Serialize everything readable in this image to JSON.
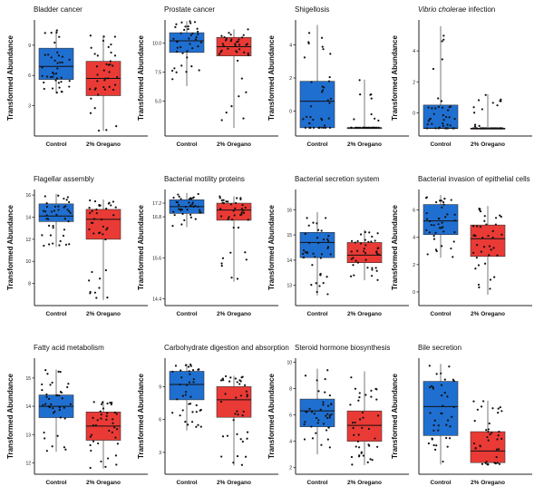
{
  "colors": {
    "control": "#1f6fd1",
    "oregano": "#ea3a35",
    "whisker": "#555555",
    "point": "#111111"
  },
  "chart_data": [
    {
      "type": "box",
      "title": "Bladder cancer",
      "italic": false,
      "ylabel": "Transformed Abundance",
      "categories": [
        "Control",
        "2% Oregano"
      ],
      "ylim": [
        0,
        11.5
      ],
      "yticks": [
        3,
        6,
        9
      ],
      "series": [
        {
          "name": "Control",
          "min": 4.2,
          "q1": 5.6,
          "median": 6.9,
          "q3": 8.7,
          "max": 10.5
        },
        {
          "name": "2% Oregano",
          "min": 0.5,
          "q1": 4.0,
          "median": 5.7,
          "q3": 7.4,
          "max": 10.0
        }
      ]
    },
    {
      "type": "box",
      "title": "Prostate cancer",
      "italic": false,
      "ylabel": "Transformed Abundance",
      "categories": [
        "Control",
        "2% Oregano"
      ],
      "ylim": [
        2.0,
        12.0
      ],
      "yticks": [
        5.0,
        7.5,
        10.0
      ],
      "series": [
        {
          "name": "Control",
          "min": 6.3,
          "q1": 9.2,
          "median": 10.2,
          "q3": 10.9,
          "max": 11.9
        },
        {
          "name": "2% Oregano",
          "min": 2.7,
          "q1": 8.9,
          "median": 9.7,
          "q3": 10.5,
          "max": 11.2
        }
      ]
    },
    {
      "type": "box",
      "title": "Shigellosis",
      "italic": false,
      "ylabel": "Transformed Abundance",
      "categories": [
        "Control",
        "2% Oregano"
      ],
      "ylim": [
        -1.5,
        5.5
      ],
      "yticks": [
        0,
        2,
        4
      ],
      "series": [
        {
          "name": "Control",
          "min": -1.0,
          "q1": -1.0,
          "median": 0.6,
          "q3": 1.8,
          "max": 5.2
        },
        {
          "name": "2% Oregano",
          "min": -1.0,
          "q1": -1.0,
          "median": -1.0,
          "q3": -1.0,
          "max": 1.9
        }
      ]
    },
    {
      "type": "box",
      "title": "Vibrio cholerae infection",
      "italic": true,
      "ylabel": "Transformed Abundance",
      "categories": [
        "Control",
        "2% Oregano"
      ],
      "ylim": [
        -1.5,
        6.0
      ],
      "yticks": [
        0,
        2,
        4
      ],
      "series": [
        {
          "name": "Control",
          "min": -1.0,
          "q1": -1.0,
          "median": -1.0,
          "q3": 0.5,
          "max": 5.6
        },
        {
          "name": "2% Oregano",
          "min": -1.0,
          "q1": -1.0,
          "median": -1.0,
          "q3": -1.0,
          "max": 1.2
        }
      ]
    },
    {
      "type": "box",
      "title": "Flagellar assembly",
      "italic": false,
      "ylabel": "Transformed Abundance",
      "categories": [
        "Control",
        "2% Oregano"
      ],
      "ylim": [
        6.0,
        16.5
      ],
      "yticks": [
        8,
        10,
        12,
        14,
        16
      ],
      "series": [
        {
          "name": "Control",
          "min": 11.3,
          "q1": 13.6,
          "median": 14.1,
          "q3": 15.2,
          "max": 16.1
        },
        {
          "name": "2% Oregano",
          "min": 6.5,
          "q1": 12.0,
          "median": 13.8,
          "q3": 14.7,
          "max": 15.6
        }
      ]
    },
    {
      "type": "box",
      "title": "Bacterial motility proteins",
      "italic": false,
      "ylabel": "Transformed Abundance",
      "categories": [
        "Control",
        "2% Oregano"
      ],
      "ylim": [
        14.2,
        17.6
      ],
      "yticks": [
        14.4,
        15.6,
        16.8,
        17.2
      ],
      "series": [
        {
          "name": "Control",
          "min": 16.5,
          "q1": 16.9,
          "median": 17.1,
          "q3": 17.3,
          "max": 17.5
        },
        {
          "name": "2% Oregano",
          "min": 14.9,
          "q1": 16.7,
          "median": 17.0,
          "q3": 17.2,
          "max": 17.4
        }
      ]
    },
    {
      "type": "box",
      "title": "Bacterial secretion system",
      "italic": false,
      "ylabel": "Transformed Abundance",
      "categories": [
        "Control",
        "2% Oregano"
      ],
      "ylim": [
        12.2,
        16.8
      ],
      "yticks": [
        13,
        14,
        15,
        16
      ],
      "series": [
        {
          "name": "Control",
          "min": 12.6,
          "q1": 14.1,
          "median": 14.7,
          "q3": 15.1,
          "max": 15.9
        },
        {
          "name": "2% Oregano",
          "min": 13.2,
          "q1": 13.9,
          "median": 14.2,
          "q3": 14.7,
          "max": 15.2
        }
      ]
    },
    {
      "type": "box",
      "title": "Bacterial invasion of epithelial cells",
      "italic": false,
      "ylabel": "Transformed Abundance",
      "categories": [
        "Control",
        "2% Oregano"
      ],
      "ylim": [
        -1.0,
        7.5
      ],
      "yticks": [
        0,
        2,
        4,
        6
      ],
      "series": [
        {
          "name": "Control",
          "min": 2.5,
          "q1": 4.2,
          "median": 5.2,
          "q3": 6.4,
          "max": 7.1
        },
        {
          "name": "2% Oregano",
          "min": -0.2,
          "q1": 2.6,
          "median": 3.9,
          "q3": 4.9,
          "max": 6.3
        }
      ]
    },
    {
      "type": "box",
      "title": "Fatty acid metabolism",
      "italic": false,
      "ylabel": "Transformed Abundance",
      "categories": [
        "Control",
        "2% Oregano"
      ],
      "ylim": [
        11.6,
        15.7
      ],
      "yticks": [
        12,
        13,
        14,
        15
      ],
      "series": [
        {
          "name": "Control",
          "min": 12.4,
          "q1": 13.6,
          "median": 14.0,
          "q3": 14.4,
          "max": 15.3
        },
        {
          "name": "2% Oregano",
          "min": 11.8,
          "q1": 12.8,
          "median": 13.3,
          "q3": 13.8,
          "max": 14.2
        }
      ]
    },
    {
      "type": "box",
      "title": "Carbohydrate digestion and absorption",
      "italic": false,
      "ylabel": "Transformed Abundance",
      "categories": [
        "Control",
        "2% Oregano"
      ],
      "ylim": [
        1.0,
        11.6
      ],
      "yticks": [
        3,
        6,
        9
      ],
      "series": [
        {
          "name": "Control",
          "min": 5.0,
          "q1": 7.8,
          "median": 9.2,
          "q3": 10.4,
          "max": 11.1
        },
        {
          "name": "2% Oregano",
          "min": 1.8,
          "q1": 6.2,
          "median": 7.8,
          "q3": 9.0,
          "max": 10.0
        }
      ]
    },
    {
      "type": "box",
      "title": "Steroid hormone biosynthesis",
      "italic": false,
      "ylabel": "Transformed Abundance",
      "categories": [
        "Control",
        "2% Oregano"
      ],
      "ylim": [
        1.5,
        10.3
      ],
      "yticks": [
        2,
        4,
        6,
        8,
        10
      ],
      "series": [
        {
          "name": "Control",
          "min": 3.0,
          "q1": 5.1,
          "median": 6.3,
          "q3": 7.2,
          "max": 9.5
        },
        {
          "name": "2% Oregano",
          "min": 2.2,
          "q1": 4.0,
          "median": 5.2,
          "q3": 6.3,
          "max": 9.3
        }
      ]
    },
    {
      "type": "box",
      "title": "Bile secretion",
      "italic": false,
      "ylabel": "Transformed Abundance",
      "categories": [
        "Control",
        "2% Oregano"
      ],
      "ylim": [
        -0.5,
        5.5
      ],
      "yticks": [],
      "series": [
        {
          "name": "Control",
          "min": 0.0,
          "q1": 1.5,
          "median": 3.0,
          "q3": 4.3,
          "max": 5.2
        },
        {
          "name": "2% Oregano",
          "min": 0.0,
          "q1": 0.1,
          "median": 0.7,
          "q3": 1.7,
          "max": 3.3
        }
      ]
    }
  ]
}
